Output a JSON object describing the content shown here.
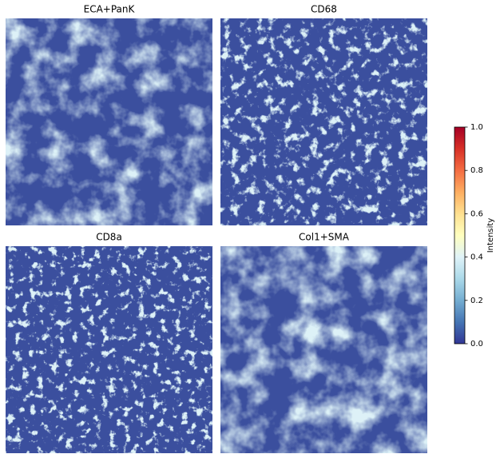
{
  "chart_data": {
    "type": "image",
    "panels": [
      {
        "title": "ECA+PanK"
      },
      {
        "title": "CD68"
      },
      {
        "title": "CD8a"
      },
      {
        "title": "Col1+SMA"
      }
    ],
    "colorbar": {
      "label": "Intensity",
      "lim": [
        0,
        1
      ],
      "ticks": [
        {
          "value": 0,
          "label": "0.0"
        },
        {
          "value": 0.2,
          "label": "0.2"
        },
        {
          "value": 0.4,
          "label": "0.4"
        },
        {
          "value": 0.6,
          "label": "0.6"
        },
        {
          "value": 0.8,
          "label": "0.8"
        },
        {
          "value": 1,
          "label": "1.0"
        }
      ],
      "colormap": [
        "#313695",
        "#4575b4",
        "#74add1",
        "#abd9e9",
        "#e0f3f8",
        "#ffffbf",
        "#fee090",
        "#fdae61",
        "#f46d43",
        "#d73027",
        "#a50026"
      ]
    }
  }
}
